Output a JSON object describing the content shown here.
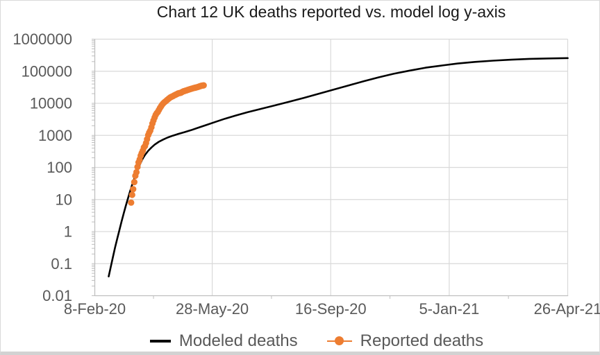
{
  "frame": {
    "background": "#ffffff",
    "border_color": "#d9d9d9",
    "bottom_strip_color": "#d2d2d2"
  },
  "styles": {
    "grid_color": "#d9d9d9",
    "axis_color": "#bfbfbf",
    "tick_label_color": "#595959",
    "title_color": "#1a1a1a",
    "legend_text_color": "#595959"
  },
  "chart_data": {
    "type": "line+scatter",
    "title": "Chart 12 UK deaths reported vs. model log y-axis",
    "grid": true,
    "legend_position": "bottom",
    "x_axis": {
      "type": "date",
      "unit": "days since 8-Feb-20",
      "range": [
        0,
        443
      ],
      "major_ticks": [
        {
          "t": 0,
          "label": "8-Feb-20"
        },
        {
          "t": 110,
          "label": "28-May-20"
        },
        {
          "t": 221,
          "label": "16-Sep-20"
        },
        {
          "t": 332,
          "label": "5-Jan-21"
        },
        {
          "t": 443,
          "label": "26-Apr-21"
        }
      ],
      "minor_tick_t": [
        55,
        165.5,
        276.5,
        387.5
      ]
    },
    "y_axis": {
      "scale": "log",
      "min": 0.01,
      "max": 1000000,
      "tick_labels": [
        "1000000",
        "100000",
        "10000",
        "1000",
        "100",
        "10",
        "1",
        "0.1",
        "0.01"
      ],
      "tick_values": [
        1000000,
        100000,
        10000,
        1000,
        100,
        10,
        1,
        0.1,
        0.01
      ],
      "minor_multiples": [
        2,
        3,
        4,
        5,
        6,
        7,
        8,
        9
      ]
    },
    "series": [
      {
        "name": "Modeled deaths",
        "type": "line",
        "color": "#000000",
        "stroke_width": 2.6,
        "points": [
          [
            13,
            0.04
          ],
          [
            15,
            0.081
          ],
          [
            17,
            0.16
          ],
          [
            19,
            0.32
          ],
          [
            21,
            0.6
          ],
          [
            23,
            1.1
          ],
          [
            25,
            2.0
          ],
          [
            27,
            3.6
          ],
          [
            29,
            6.3
          ],
          [
            31,
            10.7
          ],
          [
            33,
            17.8
          ],
          [
            35,
            28.8
          ],
          [
            37,
            44.7
          ],
          [
            39,
            67.6
          ],
          [
            41,
            100
          ],
          [
            43,
            141
          ],
          [
            45,
            191
          ],
          [
            47,
            245
          ],
          [
            50,
            331
          ],
          [
            53,
            417
          ],
          [
            56,
            513
          ],
          [
            60,
            631
          ],
          [
            64,
            741
          ],
          [
            68,
            851
          ],
          [
            73,
            977
          ],
          [
            78,
            1100
          ],
          [
            84,
            1260
          ],
          [
            90,
            1450
          ],
          [
            97,
            1740
          ],
          [
            105,
            2140
          ],
          [
            113,
            2630
          ],
          [
            122,
            3310
          ],
          [
            132,
            4170
          ],
          [
            143,
            5250
          ],
          [
            155,
            6610
          ],
          [
            168,
            8510
          ],
          [
            182,
            11200
          ],
          [
            196,
            14800
          ],
          [
            210,
            20000
          ],
          [
            224,
            26900
          ],
          [
            238,
            36300
          ],
          [
            252,
            49000
          ],
          [
            266,
            64600
          ],
          [
            280,
            83200
          ],
          [
            295,
            105000
          ],
          [
            310,
            129000
          ],
          [
            325,
            151000
          ],
          [
            340,
            174000
          ],
          [
            356,
            195000
          ],
          [
            373,
            214000
          ],
          [
            390,
            229000
          ],
          [
            407,
            243000
          ],
          [
            425,
            251000
          ],
          [
            443,
            257000
          ]
        ]
      },
      {
        "name": "Reported deaths",
        "type": "scatter",
        "color": "#ED7D31",
        "marker": "circle",
        "marker_radius": 4.6,
        "points": [
          [
            34,
            8
          ],
          [
            35,
            14
          ],
          [
            36,
            21
          ],
          [
            37,
            35
          ],
          [
            38,
            55
          ],
          [
            39,
            71
          ],
          [
            40,
            104
          ],
          [
            41,
            144
          ],
          [
            42,
            177
          ],
          [
            43,
            233
          ],
          [
            44,
            281
          ],
          [
            45,
            335
          ],
          [
            46,
            422
          ],
          [
            47,
            465
          ],
          [
            48,
            578
          ],
          [
            49,
            759
          ],
          [
            50,
            1019
          ],
          [
            51,
            1228
          ],
          [
            52,
            1408
          ],
          [
            53,
            1789
          ],
          [
            54,
            2352
          ],
          [
            55,
            2921
          ],
          [
            56,
            3605
          ],
          [
            57,
            4313
          ],
          [
            58,
            4934
          ],
          [
            59,
            5373
          ],
          [
            60,
            6159
          ],
          [
            61,
            7097
          ],
          [
            62,
            7978
          ],
          [
            63,
            8958
          ],
          [
            64,
            9875
          ],
          [
            65,
            10612
          ],
          [
            66,
            11329
          ],
          [
            67,
            12107
          ],
          [
            68,
            12868
          ],
          [
            69,
            13729
          ],
          [
            70,
            14576
          ],
          [
            71,
            15464
          ],
          [
            72,
            16060
          ],
          [
            73,
            16509
          ],
          [
            74,
            17337
          ],
          [
            75,
            18100
          ],
          [
            76,
            18738
          ],
          [
            77,
            19506
          ],
          [
            78,
            20319
          ],
          [
            79,
            20732
          ],
          [
            80,
            21092
          ],
          [
            81,
            21678
          ],
          [
            82,
            22792
          ],
          [
            83,
            23635
          ],
          [
            84,
            24055
          ],
          [
            85,
            24846
          ],
          [
            86,
            25302
          ],
          [
            87,
            26097
          ],
          [
            88,
            26771
          ],
          [
            89,
            27510
          ],
          [
            90,
            28131
          ],
          [
            91,
            28734
          ],
          [
            92,
            29427
          ],
          [
            93,
            30076
          ],
          [
            94,
            30615
          ],
          [
            95,
            31241
          ],
          [
            96,
            31855
          ],
          [
            97,
            32692
          ],
          [
            98,
            33614
          ],
          [
            99,
            34466
          ],
          [
            100,
            35341
          ],
          [
            101,
            35704
          ],
          [
            102,
            36393
          ]
        ]
      }
    ]
  }
}
